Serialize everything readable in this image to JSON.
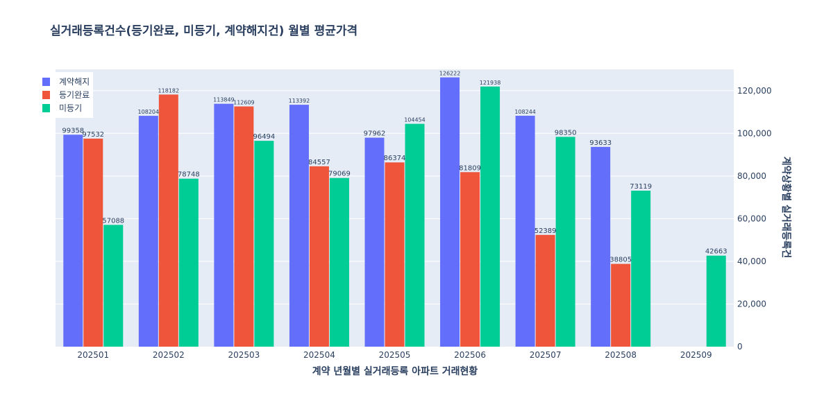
{
  "chart_data": {
    "type": "bar",
    "title": "실거래등록건수(등기완료, 미등기, 계약해지건) 월별 평균가격",
    "xlabel": "계약 년월별 실거래등록 아파트 거래현황",
    "ylabel": "계약상황별 실거래등록건",
    "y_axis_side": "right",
    "ylim": [
      0,
      130000
    ],
    "yticks": [
      0,
      20000,
      40000,
      60000,
      80000,
      100000,
      120000
    ],
    "ytick_labels": [
      "0",
      "20,000",
      "40,000",
      "60,000",
      "80,000",
      "100,000",
      "120,000"
    ],
    "grid": true,
    "legend_position": "top-left",
    "categories": [
      "202501",
      "202502",
      "202503",
      "202504",
      "202505",
      "202506",
      "202507",
      "202508",
      "202509"
    ],
    "series": [
      {
        "name": "계약해지",
        "color": "#636efa",
        "values": [
          99358,
          108204,
          113849,
          113392,
          97962,
          126222,
          108244,
          93633,
          null
        ],
        "labels": [
          "99358",
          "108204",
          "113849",
          "113392",
          "97962",
          "126222",
          "108244",
          "93633",
          ""
        ]
      },
      {
        "name": "등기완료",
        "color": "#ef553b",
        "values": [
          97532,
          118182,
          112609,
          84557,
          86374,
          81809,
          52389,
          38805,
          null
        ],
        "labels": [
          "97532",
          "118182",
          "112609",
          "84557",
          "86374",
          "81809",
          "52389",
          "38805",
          ""
        ]
      },
      {
        "name": "미등기",
        "color": "#00cc96",
        "values": [
          57088,
          78748,
          96494,
          79069,
          104454,
          121938,
          98350,
          73119,
          42663
        ],
        "labels": [
          "57088",
          "78748",
          "96494",
          "79069",
          "104454",
          "121938",
          "98350",
          "73119",
          "42663"
        ]
      }
    ]
  }
}
